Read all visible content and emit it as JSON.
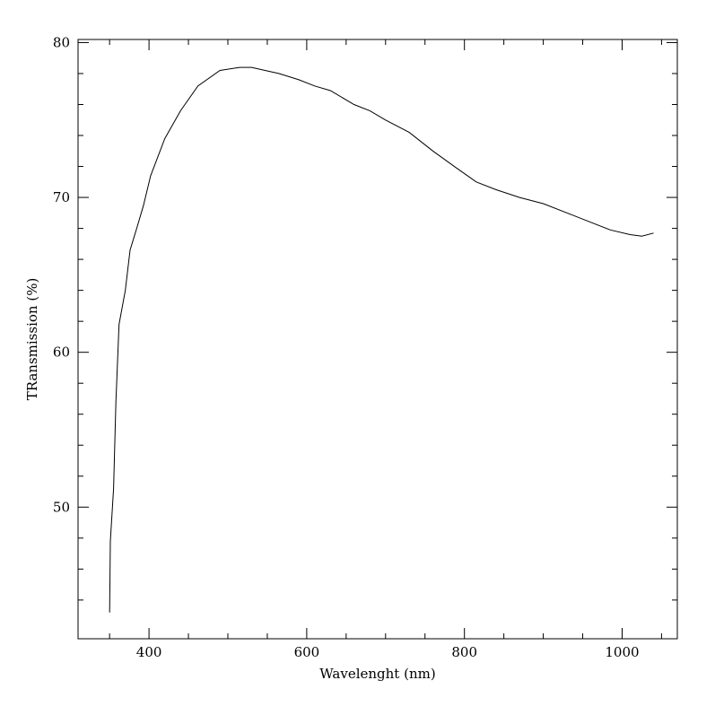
{
  "chart_data": {
    "type": "line",
    "title": "",
    "xlabel": "Wavelenght (nm)",
    "ylabel": "TRansmission (%)",
    "xlim": [
      310,
      1070
    ],
    "ylim": [
      41.5,
      80.2
    ],
    "x_major_ticks": [
      400,
      600,
      800,
      1000
    ],
    "x_minor_ticks": [
      350,
      450,
      500,
      550,
      650,
      700,
      750,
      850,
      900,
      950,
      1050
    ],
    "y_major_ticks": [
      50,
      60,
      70,
      80
    ],
    "y_minor_ticks": [
      44,
      46,
      48,
      52,
      54,
      56,
      58,
      62,
      64,
      66,
      68,
      72,
      74,
      76,
      78
    ],
    "x_tick_labels": [
      "400",
      "600",
      "800",
      "1000"
    ],
    "y_tick_labels": [
      "50",
      "60",
      "70",
      "80"
    ],
    "grid": false,
    "legend": "none",
    "series": [
      {
        "x": [
          350,
          351,
          355,
          358,
          362,
          370,
          376,
          385,
          393,
          402,
          420,
          440,
          462,
          490,
          515,
          530,
          565,
          590,
          610,
          630,
          660,
          680,
          700,
          730,
          760,
          790,
          815,
          840,
          870,
          900,
          930,
          960,
          985,
          1010,
          1025,
          1040
        ],
        "y": [
          43.2,
          47.8,
          51.2,
          56.8,
          61.8,
          64.0,
          66.6,
          68.1,
          69.5,
          71.4,
          73.8,
          75.6,
          77.2,
          78.2,
          78.4,
          78.4,
          78.0,
          77.6,
          77.2,
          76.9,
          76.0,
          75.6,
          75.0,
          74.2,
          73.0,
          71.9,
          71.0,
          70.5,
          70.0,
          69.6,
          69.0,
          68.4,
          67.9,
          67.6,
          67.5,
          67.7
        ]
      }
    ]
  }
}
